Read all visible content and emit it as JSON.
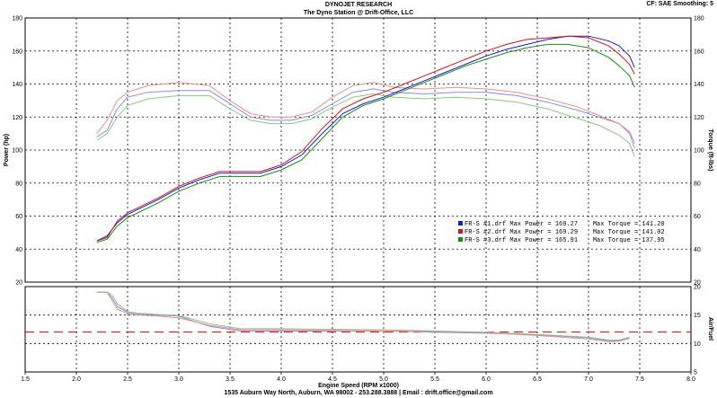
{
  "header": {
    "company": "DYNOJET RESEARCH",
    "station": "The Dyno Station @ Drift-Office, LLC",
    "settings": "CF: SAE  Smoothing: 5"
  },
  "footer": "1535 Auburn Way North, Auburn, WA 98002 - 253.288.3888 | Email : drift.office@gmail.com",
  "colors": {
    "run1": "#1a1acc",
    "run2": "#cc1a1a",
    "run3": "#1a8a1a",
    "afr_target": "#e00000"
  },
  "chart_data": [
    {
      "type": "line",
      "title": "",
      "xlabel": "",
      "ylabel": "Power (hp)",
      "y2label": "Torque (ft-lbs)",
      "xlim": [
        1.5,
        8.0
      ],
      "ylim": [
        20,
        180
      ],
      "y2lim": [
        20,
        180
      ],
      "xticks": [
        "1.5",
        "2.0",
        "2.5",
        "3.0",
        "3.5",
        "4.0",
        "4.5",
        "5.0",
        "5.5",
        "6.0",
        "6.5",
        "7.0",
        "7.5",
        "8.0"
      ],
      "yticks": [
        "20",
        "40",
        "60",
        "80",
        "100",
        "120",
        "140",
        "160",
        "180"
      ],
      "grid": true,
      "legend": {
        "placement": "center-right",
        "entries": [
          "FR-S #1.drf Max Power = 169.27    Max Torque = 141.20",
          "FR-S #2.drf Max Power = 169.29    Max Torque = 141.02",
          "FR-S #3.drf Max Power = 165.91    Max Torque = 137.95"
        ]
      },
      "power_series": [
        {
          "run": 1,
          "x": [
            2.2,
            2.3,
            2.4,
            2.5,
            2.6,
            2.8,
            3.0,
            3.2,
            3.4,
            3.6,
            3.8,
            4.0,
            4.2,
            4.4,
            4.6,
            4.8,
            5.0,
            5.2,
            5.4,
            5.6,
            5.8,
            6.0,
            6.2,
            6.4,
            6.6,
            6.8,
            7.0,
            7.2,
            7.3,
            7.4,
            7.45
          ],
          "y": [
            45,
            48,
            56,
            61,
            64,
            70,
            77,
            82,
            86,
            86,
            86,
            90,
            97,
            110,
            122,
            128,
            132,
            137,
            142,
            147,
            152,
            157,
            161,
            164,
            167,
            169,
            169,
            166,
            163,
            157,
            150
          ]
        },
        {
          "run": 2,
          "x": [
            2.2,
            2.3,
            2.4,
            2.5,
            2.6,
            2.8,
            3.0,
            3.2,
            3.4,
            3.6,
            3.8,
            4.0,
            4.2,
            4.4,
            4.6,
            4.8,
            5.0,
            5.2,
            5.4,
            5.6,
            5.8,
            6.0,
            6.2,
            6.4,
            6.6,
            6.8,
            7.0,
            7.2,
            7.3,
            7.4,
            7.45
          ],
          "y": [
            45,
            47,
            57,
            62,
            65,
            71,
            78,
            83,
            87,
            87,
            87,
            91,
            99,
            113,
            125,
            131,
            135,
            140,
            145,
            150,
            155,
            160,
            164,
            167,
            168,
            169,
            168,
            163,
            158,
            152,
            146
          ]
        },
        {
          "run": 3,
          "x": [
            2.2,
            2.3,
            2.4,
            2.5,
            2.6,
            2.8,
            3.0,
            3.2,
            3.4,
            3.6,
            3.8,
            4.0,
            4.2,
            4.4,
            4.6,
            4.8,
            5.0,
            5.2,
            5.4,
            5.6,
            5.8,
            6.0,
            6.2,
            6.4,
            6.6,
            6.8,
            7.0,
            7.2,
            7.3,
            7.4,
            7.45
          ],
          "y": [
            44,
            46,
            54,
            59,
            62,
            68,
            75,
            80,
            84,
            84,
            84,
            88,
            94,
            107,
            120,
            127,
            131,
            136,
            141,
            146,
            151,
            155,
            159,
            162,
            164,
            164,
            162,
            156,
            151,
            145,
            138
          ]
        }
      ],
      "torque_series": [
        {
          "run": 1,
          "x": [
            2.2,
            2.3,
            2.4,
            2.5,
            2.7,
            3.0,
            3.3,
            3.5,
            3.7,
            3.9,
            4.1,
            4.3,
            4.5,
            4.7,
            4.9,
            5.1,
            5.4,
            5.7,
            6.0,
            6.3,
            6.6,
            6.9,
            7.1,
            7.3,
            7.4,
            7.45
          ],
          "y": [
            108,
            112,
            125,
            132,
            135,
            136,
            136,
            128,
            120,
            118,
            118,
            121,
            128,
            135,
            137,
            135,
            134,
            135,
            135,
            133,
            129,
            124,
            120,
            116,
            111,
            104
          ]
        },
        {
          "run": 2,
          "x": [
            2.2,
            2.3,
            2.4,
            2.5,
            2.7,
            3.0,
            3.3,
            3.5,
            3.7,
            3.9,
            4.1,
            4.3,
            4.5,
            4.7,
            4.9,
            5.1,
            5.4,
            5.7,
            6.0,
            6.3,
            6.6,
            6.9,
            7.1,
            7.3,
            7.4,
            7.45
          ],
          "y": [
            110,
            118,
            130,
            135,
            139,
            141,
            139,
            130,
            122,
            120,
            120,
            123,
            132,
            139,
            141,
            138,
            137,
            138,
            137,
            135,
            131,
            126,
            121,
            116,
            110,
            101
          ]
        },
        {
          "run": 3,
          "x": [
            2.2,
            2.3,
            2.4,
            2.5,
            2.7,
            3.0,
            3.3,
            3.5,
            3.7,
            3.9,
            4.1,
            4.3,
            4.5,
            4.7,
            4.9,
            5.1,
            5.4,
            5.7,
            6.0,
            6.3,
            6.6,
            6.9,
            7.1,
            7.3,
            7.4,
            7.45
          ],
          "y": [
            106,
            110,
            120,
            127,
            131,
            133,
            133,
            125,
            118,
            116,
            116,
            119,
            126,
            132,
            134,
            132,
            131,
            132,
            131,
            129,
            125,
            119,
            115,
            109,
            104,
            96
          ]
        }
      ]
    },
    {
      "type": "line",
      "title": "",
      "xlabel": "Engine Speed (RPM x1000)",
      "ylabel": "",
      "y2label": "Air/Fuel",
      "xlim": [
        1.5,
        8.0
      ],
      "ylim": [
        5,
        20
      ],
      "yticks": [
        "5",
        "10",
        "15",
        "20"
      ],
      "target_afr": 12.0,
      "afr_series": [
        {
          "run": 1,
          "x": [
            2.2,
            2.3,
            2.35,
            2.4,
            2.5,
            2.6,
            2.8,
            3.0,
            3.3,
            3.6,
            4.0,
            4.5,
            5.0,
            5.5,
            6.0,
            6.5,
            7.0,
            7.2,
            7.3,
            7.4
          ],
          "y": [
            19,
            19,
            18,
            16.5,
            15.5,
            15.2,
            15,
            14.8,
            13,
            12.2,
            12.2,
            12.2,
            12.2,
            12,
            11.8,
            11.5,
            11,
            10.5,
            10.5,
            11
          ]
        },
        {
          "run": 2,
          "x": [
            2.2,
            2.3,
            2.35,
            2.4,
            2.5,
            2.6,
            2.8,
            3.0,
            3.3,
            3.6,
            4.0,
            4.5,
            5.0,
            5.5,
            6.0,
            6.5,
            7.0,
            7.2,
            7.3,
            7.4
          ],
          "y": [
            19,
            19,
            17.5,
            16,
            15.3,
            15,
            14.8,
            14.5,
            13.2,
            12.4,
            12.4,
            12.3,
            12.2,
            12.1,
            11.9,
            11.4,
            10.8,
            10.3,
            10.4,
            10.9
          ]
        },
        {
          "run": 3,
          "x": [
            2.2,
            2.3,
            2.35,
            2.4,
            2.5,
            2.6,
            2.8,
            3.0,
            3.3,
            3.6,
            4.0,
            4.5,
            5.0,
            5.5,
            6.0,
            6.5,
            7.0,
            7.2,
            7.3,
            7.4
          ],
          "y": [
            19,
            19,
            18.5,
            17,
            15.6,
            15.3,
            15.1,
            14.9,
            13.5,
            12.6,
            12.6,
            12.5,
            12.4,
            12.2,
            12,
            11.6,
            11.1,
            10.6,
            10.6,
            11.1
          ]
        }
      ]
    }
  ]
}
